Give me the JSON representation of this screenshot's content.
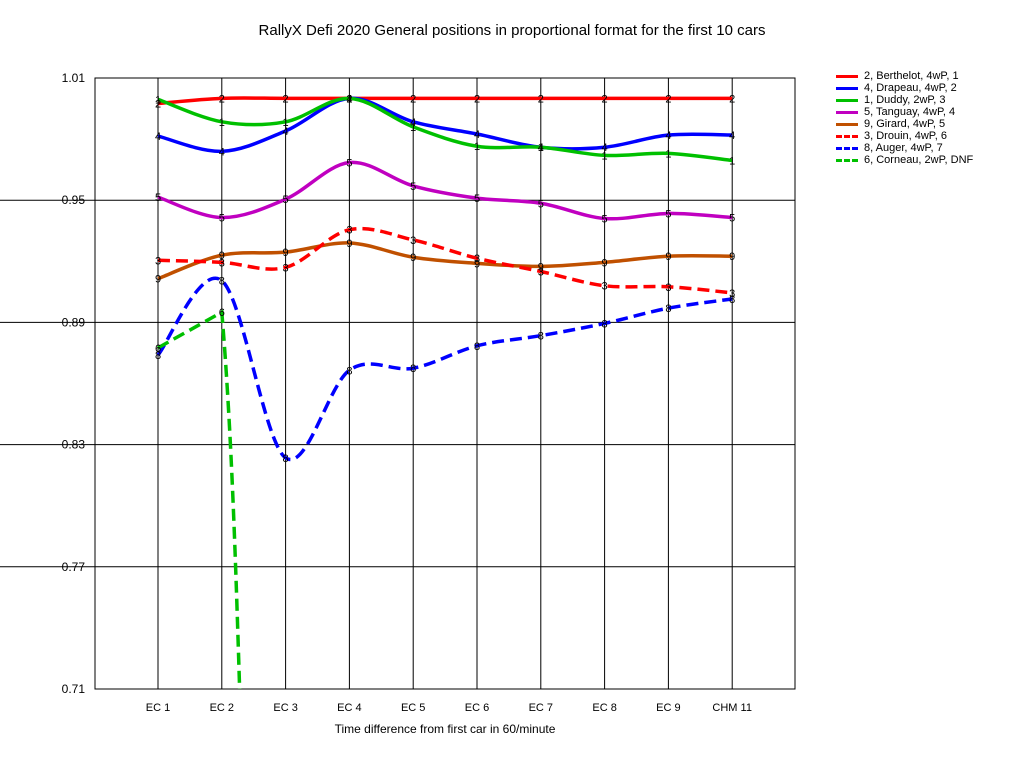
{
  "chart_data": {
    "type": "line",
    "title": "RallyX Defi 2020  General positions in proportional format for the first 10 cars",
    "xlabel": "Time difference from first car in 60/minute",
    "ylabel": "",
    "categories": [
      "EC 1",
      "EC 2",
      "EC 3",
      "EC 4",
      "EC 5",
      "EC 6",
      "EC 7",
      "EC 8",
      "EC 9",
      "CHM 11"
    ],
    "ylim": [
      0.71,
      1.01
    ],
    "yticks": [
      "0.71",
      "0.77",
      "0.83",
      "0.89",
      "0.95",
      "1.01"
    ],
    "grid": true,
    "legend_position": "right",
    "series": [
      {
        "name": "2, Berthelot, 4wP, 1",
        "label": "2",
        "color": "#ff0000",
        "dashed": false,
        "values": [
          0.9975,
          1.0,
          1.0,
          1.0,
          1.0,
          1.0,
          1.0,
          1.0,
          1.0,
          1.0
        ]
      },
      {
        "name": "4, Drapeau, 4wP, 2",
        "label": "4",
        "color": "#0000ff",
        "dashed": false,
        "values": [
          0.9815,
          0.974,
          0.984,
          1.0,
          0.9885,
          0.9825,
          0.976,
          0.976,
          0.982,
          0.982
        ]
      },
      {
        "name": "1, Duddy, 2wP, 3",
        "label": "1",
        "color": "#00c000",
        "dashed": false,
        "values": [
          0.9995,
          0.9885,
          0.9885,
          1.0,
          0.986,
          0.9765,
          0.976,
          0.972,
          0.973,
          0.9695
        ]
      },
      {
        "name": "5, Tanguay, 4wP, 4",
        "label": "5",
        "color": "#c000c0",
        "dashed": false,
        "values": [
          0.9515,
          0.9415,
          0.9505,
          0.9685,
          0.957,
          0.951,
          0.9485,
          0.941,
          0.9435,
          0.9415
        ]
      },
      {
        "name": "9, Girard, 4wP, 5",
        "label": "9",
        "color": "#c05000",
        "dashed": false,
        "values": [
          0.9115,
          0.923,
          0.9245,
          0.929,
          0.922,
          0.919,
          0.9175,
          0.9195,
          0.9225,
          0.9225
        ]
      },
      {
        "name": "3, Drouin, 4wP, 6",
        "label": "3",
        "color": "#ff0000",
        "dashed": true,
        "values": [
          0.9205,
          0.9195,
          0.917,
          0.9355,
          0.9305,
          0.9215,
          0.915,
          0.908,
          0.9075,
          0.9045
        ]
      },
      {
        "name": "8, Auger, 4wP, 7",
        "label": "8",
        "color": "#0000ff",
        "dashed": true,
        "values": [
          0.874,
          0.9105,
          0.8235,
          0.8665,
          0.8675,
          0.8785,
          0.8835,
          0.8895,
          0.897,
          0.9015
        ]
      },
      {
        "name": "6, Corneau, 2wP, DNF",
        "label": "6",
        "color": "#00c000",
        "dashed": true,
        "values": [
          0.8775,
          0.895,
          null,
          null,
          null,
          null,
          null,
          null,
          null,
          null
        ]
      }
    ]
  }
}
